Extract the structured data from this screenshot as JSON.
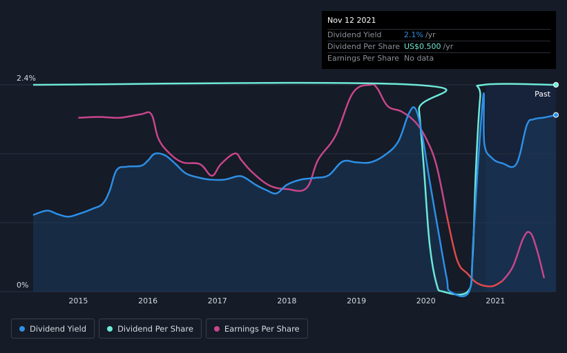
{
  "tooltip": {
    "date": "Nov 12 2021",
    "rows": [
      {
        "label": "Dividend Yield",
        "value": "2.1%",
        "unit": "/yr",
        "color": "#2e8fe6"
      },
      {
        "label": "Dividend Per Share",
        "value": "US$0.500",
        "unit": "/yr",
        "color": "#6ee9d8"
      },
      {
        "label": "Earnings Per Share",
        "value": "No data",
        "unit": "",
        "color": "#8c909a"
      }
    ]
  },
  "past_label": "Past",
  "legend": [
    {
      "label": "Dividend Yield",
      "color": "#2e8fe6"
    },
    {
      "label": "Dividend Per Share",
      "color": "#6ee9d8"
    },
    {
      "label": "Earnings Per Share",
      "color": "#c8468a"
    }
  ],
  "chart_data": {
    "type": "line",
    "y_tick_labels": [
      "2.4%",
      "0%"
    ],
    "ylim": [
      0,
      2.4
    ],
    "xlim": [
      2014.35,
      2021.87
    ],
    "x_tick_labels": [
      "2015",
      "2016",
      "2017",
      "2018",
      "2019",
      "2020",
      "2021"
    ],
    "x_ticks": [
      2015,
      2016,
      2017,
      2018,
      2019,
      2020,
      2021
    ],
    "past_region_start": 2020.86,
    "series": [
      {
        "name": "Dividend Yield",
        "color": "#2e8fe6",
        "unit": "%",
        "points": [
          [
            2014.35,
            0.89
          ],
          [
            2014.55,
            0.94
          ],
          [
            2014.7,
            0.9
          ],
          [
            2014.85,
            0.87
          ],
          [
            2015.0,
            0.9
          ],
          [
            2015.2,
            0.96
          ],
          [
            2015.35,
            1.02
          ],
          [
            2015.45,
            1.17
          ],
          [
            2015.55,
            1.41
          ],
          [
            2015.7,
            1.45
          ],
          [
            2015.9,
            1.46
          ],
          [
            2016.0,
            1.52
          ],
          [
            2016.1,
            1.6
          ],
          [
            2016.25,
            1.58
          ],
          [
            2016.4,
            1.48
          ],
          [
            2016.55,
            1.37
          ],
          [
            2016.75,
            1.32
          ],
          [
            2016.9,
            1.3
          ],
          [
            2017.1,
            1.3
          ],
          [
            2017.3,
            1.34
          ],
          [
            2017.4,
            1.32
          ],
          [
            2017.55,
            1.24
          ],
          [
            2017.7,
            1.18
          ],
          [
            2017.85,
            1.14
          ],
          [
            2018.0,
            1.24
          ],
          [
            2018.2,
            1.3
          ],
          [
            2018.4,
            1.32
          ],
          [
            2018.6,
            1.35
          ],
          [
            2018.8,
            1.51
          ],
          [
            2019.0,
            1.5
          ],
          [
            2019.2,
            1.5
          ],
          [
            2019.4,
            1.58
          ],
          [
            2019.6,
            1.74
          ],
          [
            2019.75,
            2.06
          ],
          [
            2019.85,
            2.12
          ],
          [
            2019.95,
            1.8
          ],
          [
            2020.05,
            1.3
          ],
          [
            2020.2,
            0.6
          ],
          [
            2020.3,
            0.15
          ],
          [
            2020.35,
            0.0
          ],
          [
            2020.62,
            0.0
          ],
          [
            2020.68,
            0.6
          ],
          [
            2020.75,
            1.5
          ],
          [
            2020.83,
            2.3
          ],
          [
            2020.84,
            1.72
          ],
          [
            2020.95,
            1.55
          ],
          [
            2021.1,
            1.49
          ],
          [
            2021.3,
            1.48
          ],
          [
            2021.45,
            1.93
          ],
          [
            2021.55,
            2.0
          ],
          [
            2021.7,
            2.02
          ],
          [
            2021.87,
            2.05
          ]
        ]
      },
      {
        "name": "Dividend Per Share",
        "color": "#6ee9d8",
        "unit": "US$",
        "points": [
          [
            2014.35,
            0.5
          ],
          [
            2019.84,
            0.5
          ],
          [
            2019.9,
            0.44
          ],
          [
            2019.97,
            0.3
          ],
          [
            2020.05,
            0.12
          ],
          [
            2020.15,
            0.02
          ],
          [
            2020.25,
            0.0
          ],
          [
            2020.6,
            0.0
          ],
          [
            2020.67,
            0.08
          ],
          [
            2020.72,
            0.3
          ],
          [
            2020.78,
            0.47
          ],
          [
            2020.83,
            0.5
          ],
          [
            2021.87,
            0.5
          ]
        ]
      },
      {
        "name": "Earnings Per Share",
        "color": "#c8468a",
        "negative_color": "#e04a4a",
        "unit": "US$",
        "points": [
          [
            2015.0,
            1.95
          ],
          [
            2015.3,
            1.96
          ],
          [
            2015.6,
            1.95
          ],
          [
            2015.9,
            1.99
          ],
          [
            2016.05,
            1.99
          ],
          [
            2016.15,
            1.72
          ],
          [
            2016.3,
            1.56
          ],
          [
            2016.5,
            1.45
          ],
          [
            2016.75,
            1.43
          ],
          [
            2016.92,
            1.3
          ],
          [
            2017.05,
            1.43
          ],
          [
            2017.25,
            1.55
          ],
          [
            2017.35,
            1.47
          ],
          [
            2017.5,
            1.34
          ],
          [
            2017.75,
            1.19
          ],
          [
            2018.0,
            1.15
          ],
          [
            2018.28,
            1.16
          ],
          [
            2018.45,
            1.48
          ],
          [
            2018.7,
            1.75
          ],
          [
            2018.95,
            2.23
          ],
          [
            2019.2,
            2.32
          ],
          [
            2019.3,
            2.28
          ],
          [
            2019.45,
            2.08
          ],
          [
            2019.65,
            2.02
          ],
          [
            2019.85,
            1.9
          ],
          [
            2020.0,
            1.72
          ],
          [
            2020.15,
            1.42
          ],
          [
            2020.3,
            0.85
          ],
          [
            2020.45,
            0.35
          ],
          [
            2020.6,
            0.2
          ],
          [
            2020.75,
            0.09
          ],
          [
            2020.95,
            0.06
          ],
          [
            2021.1,
            0.12
          ],
          [
            2021.25,
            0.28
          ],
          [
            2021.4,
            0.6
          ],
          [
            2021.5,
            0.66
          ],
          [
            2021.6,
            0.46
          ],
          [
            2021.7,
            0.15
          ]
        ]
      }
    ]
  }
}
